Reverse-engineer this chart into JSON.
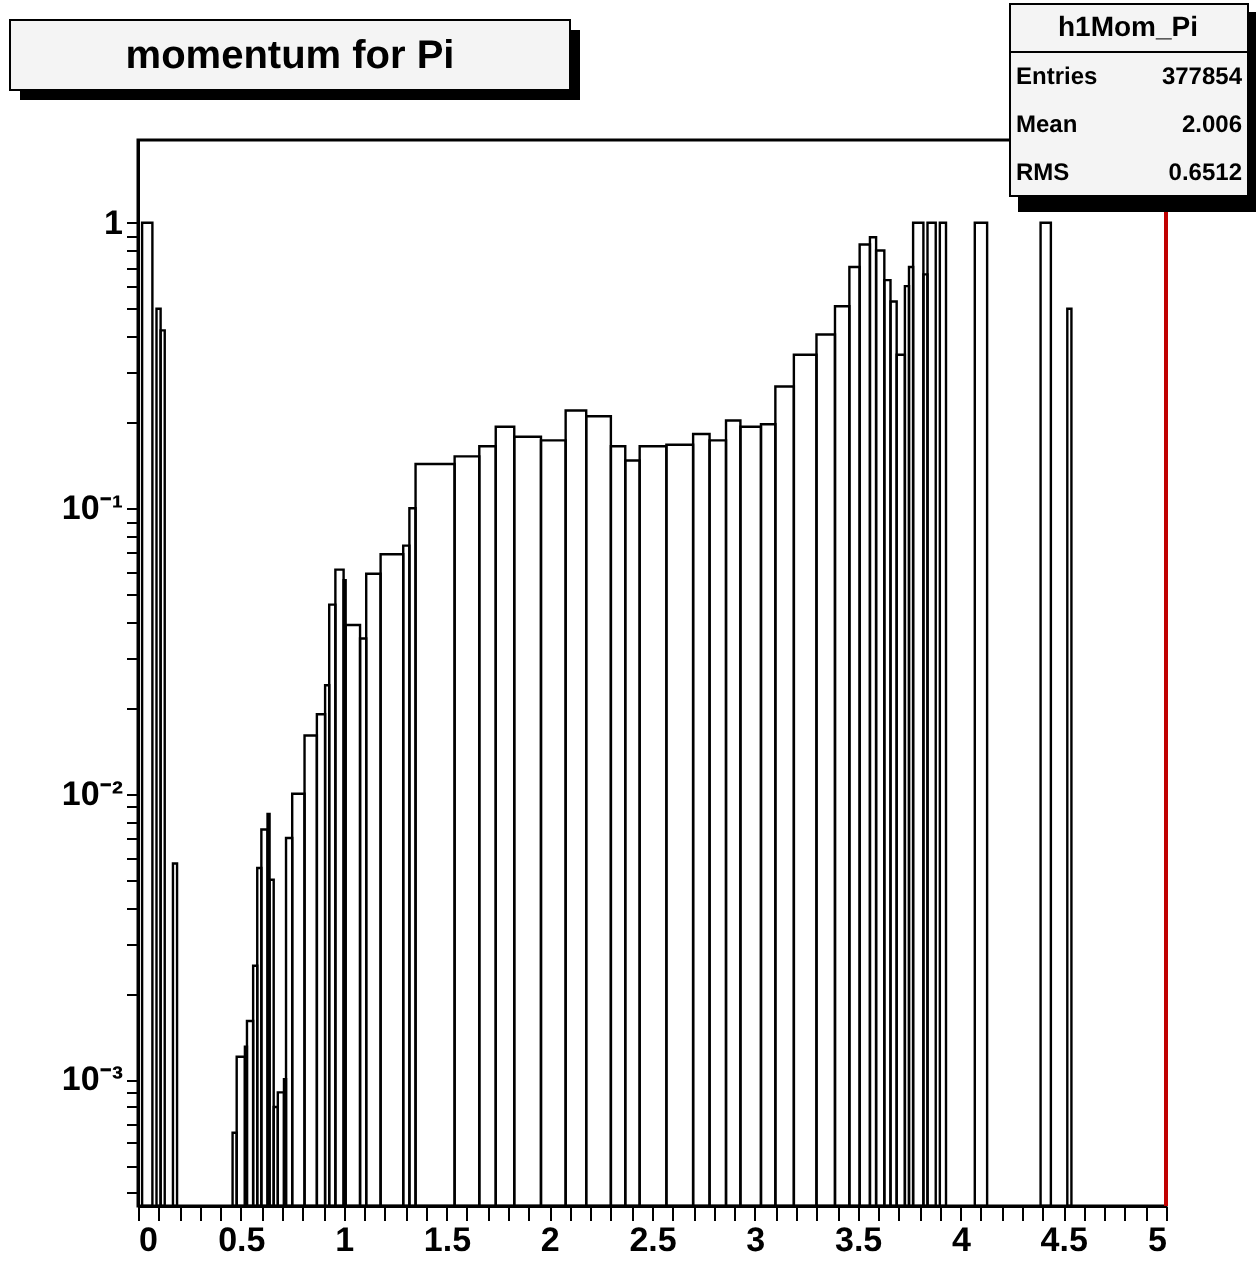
{
  "chart_data": {
    "type": "histogram",
    "title": "momentum  for Pi",
    "annotations": [
      "h1Mom_Pi",
      "Entries",
      "377854",
      "Mean",
      "2.006",
      "RMS",
      "0.6512"
    ],
    "bins": [
      0.02,
      0.07,
      0.09,
      0.11,
      0.13,
      0.17,
      0.19,
      0.46,
      0.48,
      0.52,
      0.53,
      0.56,
      0.58,
      0.6,
      0.63,
      0.64,
      0.66,
      0.68,
      0.71,
      0.72,
      0.75,
      0.81,
      0.87,
      0.91,
      0.93,
      0.96,
      1.0,
      1.01,
      1.08,
      1.11,
      1.18,
      1.29,
      1.32,
      1.35,
      1.54,
      1.66,
      1.74,
      1.83,
      1.96,
      2.08,
      2.18,
      2.3,
      2.37,
      2.44,
      2.57,
      2.7,
      2.78,
      2.86,
      2.93,
      3.03,
      3.1,
      3.19,
      3.3,
      3.39,
      3.46,
      3.51,
      3.56,
      3.59,
      3.63,
      3.66,
      3.69,
      3.73,
      3.75,
      3.77,
      3.82,
      3.84,
      3.88,
      3.9,
      3.93,
      4.07,
      4.13,
      4.39,
      4.44,
      4.52,
      4.54
    ],
    "values": [
      1.0,
      null,
      0.5,
      0.42,
      null,
      0.0057,
      null,
      0.00065,
      0.0012,
      0.0013,
      0.0016,
      0.0025,
      0.0055,
      0.0075,
      0.0085,
      0.005,
      0.0008,
      0.0009,
      0.001,
      0.007,
      0.01,
      0.016,
      0.019,
      0.024,
      0.046,
      0.061,
      0.056,
      0.039,
      0.035,
      0.059,
      0.069,
      0.074,
      0.1,
      0.143,
      0.152,
      0.165,
      0.193,
      0.178,
      0.173,
      0.22,
      0.21,
      0.165,
      0.147,
      0.165,
      0.167,
      0.182,
      0.173,
      0.203,
      0.193,
      0.197,
      0.267,
      0.345,
      0.406,
      0.51,
      0.7,
      0.84,
      0.89,
      0.8,
      0.63,
      0.53,
      0.345,
      0.6,
      0.7,
      1.0,
      0.66,
      1.0,
      null,
      1.0,
      null,
      1.0,
      null,
      1.0,
      null,
      0.5
    ],
    "color": "#000000",
    "log": true,
    "grid": false,
    "xlim": [
      0,
      5
    ],
    "xticks": [
      0,
      {
        "value": 0.1,
        "label": null
      },
      {
        "value": 0.2,
        "label": null
      },
      {
        "value": 0.3,
        "label": null
      },
      {
        "value": 0.4,
        "label": null
      },
      0.5,
      {
        "value": 0.6,
        "label": null
      },
      {
        "value": 0.7,
        "label": null
      },
      {
        "value": 0.8,
        "label": null
      },
      {
        "value": 0.9,
        "label": null
      },
      1,
      {
        "value": 1.1,
        "label": null
      },
      {
        "value": 1.2,
        "label": null
      },
      {
        "value": 1.3,
        "label": null
      },
      {
        "value": 1.4,
        "label": null
      },
      1.5,
      {
        "value": 1.6,
        "label": null
      },
      {
        "value": 1.7,
        "label": null
      },
      {
        "value": 1.8,
        "label": null
      },
      {
        "value": 1.9,
        "label": null
      },
      2,
      {
        "value": 2.1,
        "label": null
      },
      {
        "value": 2.2,
        "label": null
      },
      {
        "value": 2.3,
        "label": null
      },
      {
        "value": 2.4,
        "label": null
      },
      2.5,
      {
        "value": 2.6,
        "label": null
      },
      {
        "value": 2.7,
        "label": null
      },
      {
        "value": 2.8,
        "label": null
      },
      {
        "value": 2.9,
        "label": null
      },
      3,
      {
        "value": 3.1,
        "label": null
      },
      {
        "value": 3.2,
        "label": null
      },
      {
        "value": 3.3,
        "label": null
      },
      {
        "value": 3.4,
        "label": null
      },
      3.5,
      {
        "value": 3.6,
        "label": null
      },
      {
        "value": 3.7,
        "label": null
      },
      {
        "value": 3.8,
        "label": null
      },
      {
        "value": 3.9,
        "label": null
      },
      4,
      {
        "value": 4.1,
        "label": null
      },
      {
        "value": 4.2,
        "label": null
      },
      {
        "value": 4.3,
        "label": null
      },
      {
        "value": 4.4,
        "label": null
      },
      4.5,
      {
        "value": 4.6,
        "label": null
      },
      {
        "value": 4.7,
        "label": null
      },
      {
        "value": 4.8,
        "label": null
      },
      {
        "value": 4.9,
        "label": null
      },
      5
    ],
    "ylim": [
      0.00036,
      1.95
    ],
    "yticks": [
      {
        "value": 0.0004,
        "label": null
      },
      {
        "value": 0.0005,
        "label": null
      },
      {
        "value": 0.0006,
        "label": null
      },
      {
        "value": 0.0007,
        "label": null
      },
      {
        "value": 0.0008,
        "label": null
      },
      {
        "value": 0.0009,
        "label": null
      },
      {
        "value": 0.001,
        "label": "10⁻³"
      },
      {
        "value": 0.002,
        "label": null
      },
      {
        "value": 0.003,
        "label": null
      },
      {
        "value": 0.004,
        "label": null
      },
      {
        "value": 0.005,
        "label": null
      },
      {
        "value": 0.006,
        "label": null
      },
      {
        "value": 0.007,
        "label": null
      },
      {
        "value": 0.008,
        "label": null
      },
      {
        "value": 0.009,
        "label": null
      },
      {
        "value": 0.01,
        "label": "10⁻²"
      },
      {
        "value": 0.02,
        "label": null
      },
      {
        "value": 0.03,
        "label": null
      },
      {
        "value": 0.04,
        "label": null
      },
      {
        "value": 0.05,
        "label": null
      },
      {
        "value": 0.06,
        "label": null
      },
      {
        "value": 0.07,
        "label": null
      },
      {
        "value": 0.08,
        "label": null
      },
      {
        "value": 0.09,
        "label": null
      },
      {
        "value": 0.1,
        "label": "10⁻¹"
      },
      {
        "value": 0.2,
        "label": null
      },
      {
        "value": 0.3,
        "label": null
      },
      {
        "value": 0.4,
        "label": null
      },
      {
        "value": 0.5,
        "label": null
      },
      {
        "value": 0.6,
        "label": null
      },
      {
        "value": 0.7,
        "label": null
      },
      {
        "value": 0.8,
        "label": null
      },
      {
        "value": 0.9,
        "label": null
      },
      1
    ],
    "ref_lines": [
      {
        "axis": "x",
        "value": 5,
        "color": "#c00000"
      }
    ]
  }
}
